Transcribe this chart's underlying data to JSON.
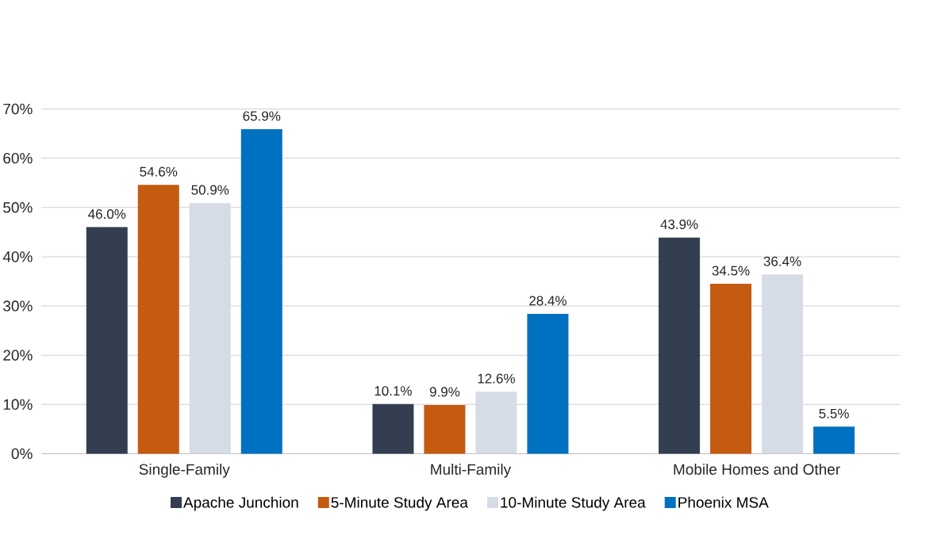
{
  "chart_data": {
    "type": "bar",
    "categories": [
      "Single-Family",
      "Multi-Family",
      "Mobile Homes and Other"
    ],
    "series": [
      {
        "name": "Apache Junchion",
        "color": "#333f50",
        "values": [
          46.0,
          10.1,
          43.9
        ],
        "value_labels": [
          "46.0%",
          "10.1%",
          "43.9%"
        ]
      },
      {
        "name": "5-Minute Study Area",
        "color": "#c55a11",
        "values": [
          54.6,
          9.9,
          34.5
        ],
        "value_labels": [
          "54.6%",
          "9.9%",
          "34.5%"
        ]
      },
      {
        "name": "10-Minute Study Area",
        "color": "#d6dce5",
        "values": [
          50.9,
          12.6,
          36.4
        ],
        "value_labels": [
          "50.9%",
          "12.6%",
          "36.4%"
        ]
      },
      {
        "name": "Phoenix MSA",
        "color": "#0070c0",
        "values": [
          65.9,
          28.4,
          5.5
        ],
        "value_labels": [
          "65.9%",
          "28.4%",
          "5.5%"
        ]
      }
    ],
    "ylim": [
      0,
      70
    ],
    "yticks": [
      {
        "value": 0,
        "label": "0%"
      },
      {
        "value": 10,
        "label": "10%"
      },
      {
        "value": 20,
        "label": "20%"
      },
      {
        "value": 30,
        "label": "30%"
      },
      {
        "value": 40,
        "label": "40%"
      },
      {
        "value": 50,
        "label": "50%"
      },
      {
        "value": 60,
        "label": "60%"
      },
      {
        "value": 70,
        "label": "70%"
      }
    ],
    "grid": "y",
    "legend": "bottom"
  }
}
